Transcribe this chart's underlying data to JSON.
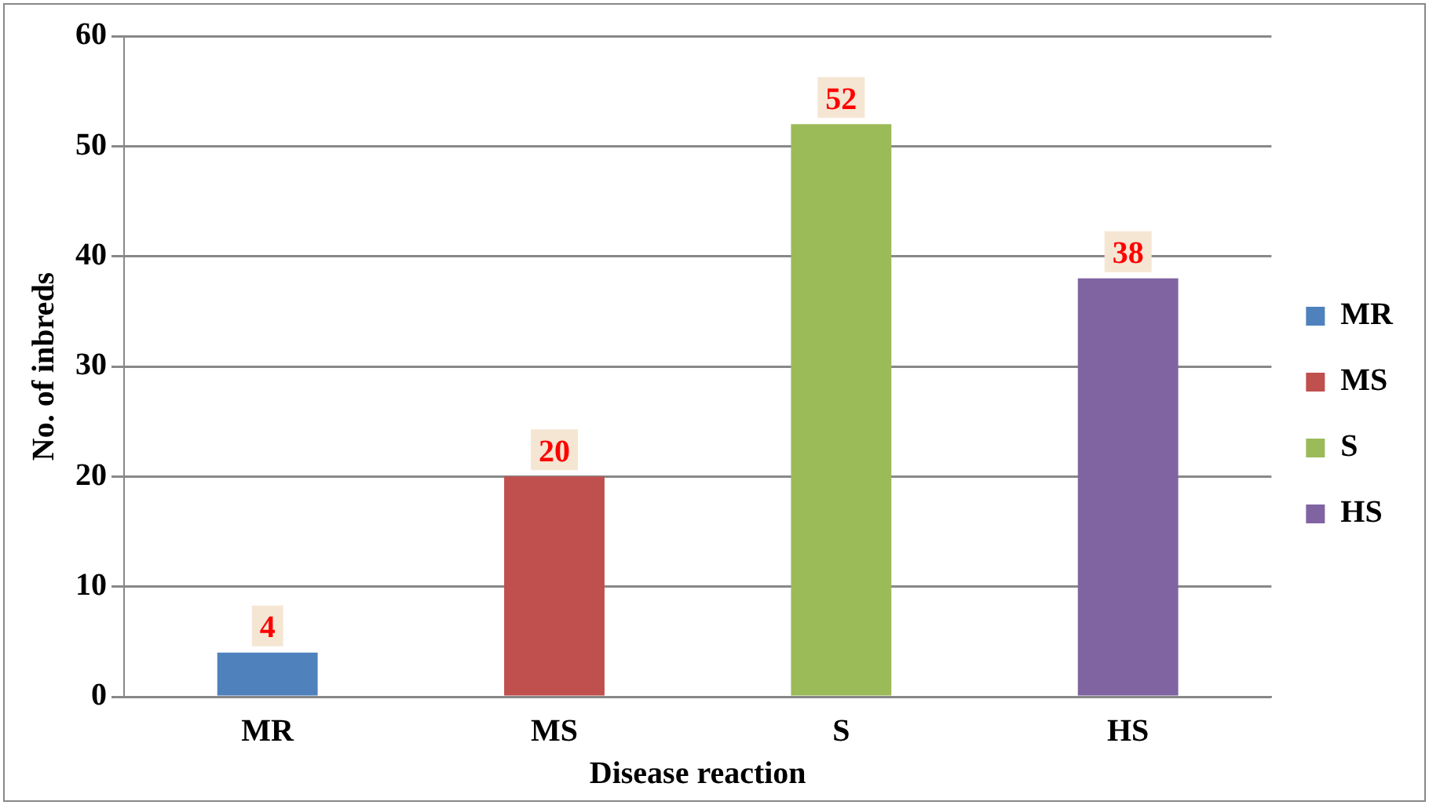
{
  "chart_data": {
    "type": "bar",
    "xlabel": "Disease reaction",
    "ylabel": "No. of inbreds",
    "categories": [
      "MR",
      "MS",
      "S",
      "HS"
    ],
    "series": [
      {
        "name": "MR",
        "color": "#4f81bd",
        "values": [
          4,
          null,
          null,
          null
        ]
      },
      {
        "name": "MS",
        "color": "#c0504d",
        "values": [
          null,
          20,
          null,
          null
        ]
      },
      {
        "name": "S",
        "color": "#9bbb59",
        "values": [
          null,
          null,
          52,
          null
        ]
      },
      {
        "name": "HS",
        "color": "#8064a2",
        "values": [
          null,
          null,
          null,
          38
        ]
      }
    ],
    "ylim": [
      0,
      60
    ],
    "yticks": [
      0,
      10,
      20,
      30,
      40,
      50,
      60
    ],
    "grid": "y",
    "legend": "right",
    "data_labels": true
  }
}
